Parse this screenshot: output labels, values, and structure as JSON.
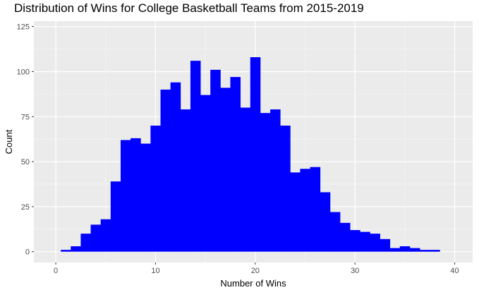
{
  "chart_data": {
    "type": "bar",
    "title": "Distribution of Wins for College Basketball Teams from 2015-2019",
    "xlabel": "Number of Wins",
    "ylabel": "Count",
    "xlim": [
      -2.2,
      41.8
    ],
    "ylim": [
      -6,
      128
    ],
    "x_ticks": [
      0,
      10,
      20,
      30,
      40
    ],
    "y_ticks": [
      0,
      25,
      50,
      75,
      100,
      125
    ],
    "bin_start": 0.5,
    "bin_width": 1,
    "values": [
      1,
      3,
      10,
      15,
      18,
      39,
      62,
      63,
      60,
      70,
      90,
      94,
      79,
      106,
      87,
      101,
      91,
      97,
      80,
      108,
      77,
      79,
      70,
      44,
      46,
      47,
      33,
      22,
      16,
      12,
      11,
      10,
      7,
      2,
      3,
      2,
      1,
      1
    ],
    "bar_color": "#0000ff",
    "panel_color": "#ebebeb",
    "grid": true,
    "legend": "none"
  }
}
